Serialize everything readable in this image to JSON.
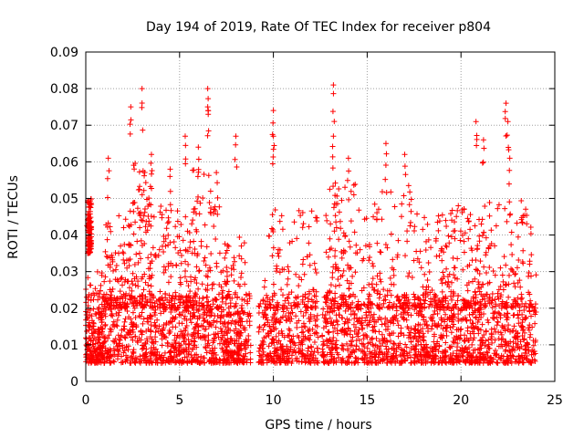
{
  "chart_data": {
    "type": "scatter",
    "title": "Day 194 of 2019, Rate Of TEC Index for receiver p804",
    "xlabel": "GPS time / hours",
    "ylabel": "ROTI / TECUs",
    "xlim": [
      0,
      25
    ],
    "ylim": [
      0,
      0.09
    ],
    "x_ticks": [
      0,
      5,
      10,
      15,
      20,
      25
    ],
    "x_tick_labels": [
      "0",
      "5",
      "10",
      "15",
      "20",
      "25"
    ],
    "y_ticks": [
      0,
      0.01,
      0.02,
      0.03,
      0.04,
      0.05,
      0.06,
      0.07,
      0.08,
      0.09
    ],
    "y_tick_labels": [
      "0",
      "0.01",
      "0.02",
      "0.03",
      "0.04",
      "0.05",
      "0.06",
      "0.07",
      "0.08",
      "0.09"
    ],
    "grid": true,
    "marker": "+",
    "marker_color": "#ff0000",
    "x_data_range": [
      0,
      24
    ],
    "baseline_typical_range": [
      0.005,
      0.02
    ],
    "notable_peaks": [
      {
        "x": 0.1,
        "y": 0.049
      },
      {
        "x": 1.2,
        "y": 0.061
      },
      {
        "x": 2.4,
        "y": 0.075
      },
      {
        "x": 3.0,
        "y": 0.08
      },
      {
        "x": 3.5,
        "y": 0.062
      },
      {
        "x": 4.5,
        "y": 0.058
      },
      {
        "x": 5.3,
        "y": 0.067
      },
      {
        "x": 6.0,
        "y": 0.064
      },
      {
        "x": 6.5,
        "y": 0.08
      },
      {
        "x": 6.5,
        "y": 0.075
      },
      {
        "x": 8.0,
        "y": 0.067
      },
      {
        "x": 10.0,
        "y": 0.074
      },
      {
        "x": 10.0,
        "y": 0.067
      },
      {
        "x": 13.2,
        "y": 0.081
      },
      {
        "x": 13.2,
        "y": 0.067
      },
      {
        "x": 14.0,
        "y": 0.061
      },
      {
        "x": 16.0,
        "y": 0.065
      },
      {
        "x": 17.0,
        "y": 0.062
      },
      {
        "x": 20.8,
        "y": 0.071
      },
      {
        "x": 21.2,
        "y": 0.066
      },
      {
        "x": 22.4,
        "y": 0.076
      },
      {
        "x": 22.5,
        "y": 0.071
      },
      {
        "x": 22.6,
        "y": 0.061
      }
    ],
    "clusters": [
      {
        "x": [
          0,
          1
        ],
        "y": [
          0.005,
          0.03
        ]
      },
      {
        "x": [
          0.1,
          0.3
        ],
        "y": [
          0.035,
          0.05
        ]
      },
      {
        "x": [
          1,
          2.5
        ],
        "y": [
          0.02,
          0.047
        ]
      },
      {
        "x": [
          2.5,
          3.6
        ],
        "y": [
          0.02,
          0.06
        ]
      },
      {
        "x": [
          3.6,
          5.5
        ],
        "y": [
          0.02,
          0.048
        ]
      },
      {
        "x": [
          5.5,
          7.3
        ],
        "y": [
          0.02,
          0.058
        ]
      },
      {
        "x": [
          7.3,
          8.5
        ],
        "y": [
          0.005,
          0.04
        ]
      },
      {
        "x": [
          9.5,
          12.5
        ],
        "y": [
          0.02,
          0.05
        ]
      },
      {
        "x": [
          12.8,
          14.5
        ],
        "y": [
          0.02,
          0.055
        ]
      },
      {
        "x": [
          14.5,
          17.5
        ],
        "y": [
          0.02,
          0.055
        ]
      },
      {
        "x": [
          17.5,
          19.5
        ],
        "y": [
          0.02,
          0.048
        ]
      },
      {
        "x": [
          19.5,
          21.5
        ],
        "y": [
          0.02,
          0.05
        ]
      },
      {
        "x": [
          21.5,
          24
        ],
        "y": [
          0.02,
          0.05
        ]
      }
    ],
    "gaps": [
      [
        8.8,
        9.2
      ],
      [
        12.4,
        12.6
      ]
    ]
  }
}
